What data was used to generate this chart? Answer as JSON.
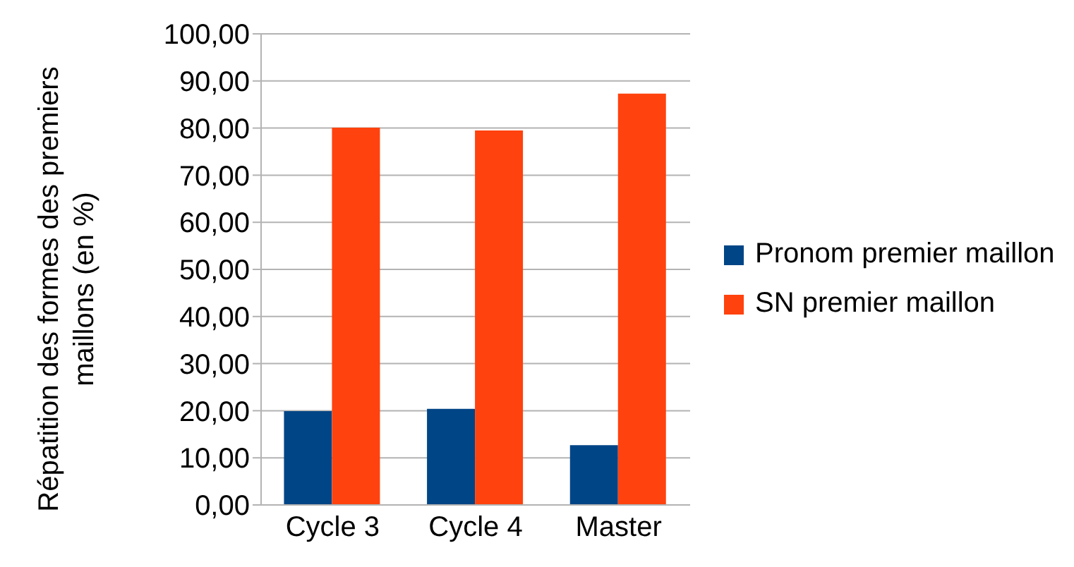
{
  "chart_data": {
    "type": "bar",
    "ylabel": "Répatition des formes des premiers maillons (en %)",
    "categories": [
      "Cycle 3",
      "Cycle 4",
      "Master"
    ],
    "series": [
      {
        "name": "Pronom premier maillon",
        "color": "#004586",
        "values": [
          19.9,
          20.4,
          12.7
        ]
      },
      {
        "name": "SN premier maillon",
        "color": "#ff420e",
        "values": [
          80.1,
          79.5,
          87.3
        ]
      }
    ],
    "ylim": [
      0,
      100
    ],
    "yticks": [
      {
        "value": 0,
        "label": "0,00"
      },
      {
        "value": 10,
        "label": "10,00"
      },
      {
        "value": 20,
        "label": "20,00"
      },
      {
        "value": 30,
        "label": "30,00"
      },
      {
        "value": 40,
        "label": "40,00"
      },
      {
        "value": 50,
        "label": "50,00"
      },
      {
        "value": 60,
        "label": "60,00"
      },
      {
        "value": 70,
        "label": "70,00"
      },
      {
        "value": 80,
        "label": "80,00"
      },
      {
        "value": 90,
        "label": "90,00"
      },
      {
        "value": 100,
        "label": "100,00"
      }
    ],
    "grid": "y",
    "legend": "right"
  }
}
